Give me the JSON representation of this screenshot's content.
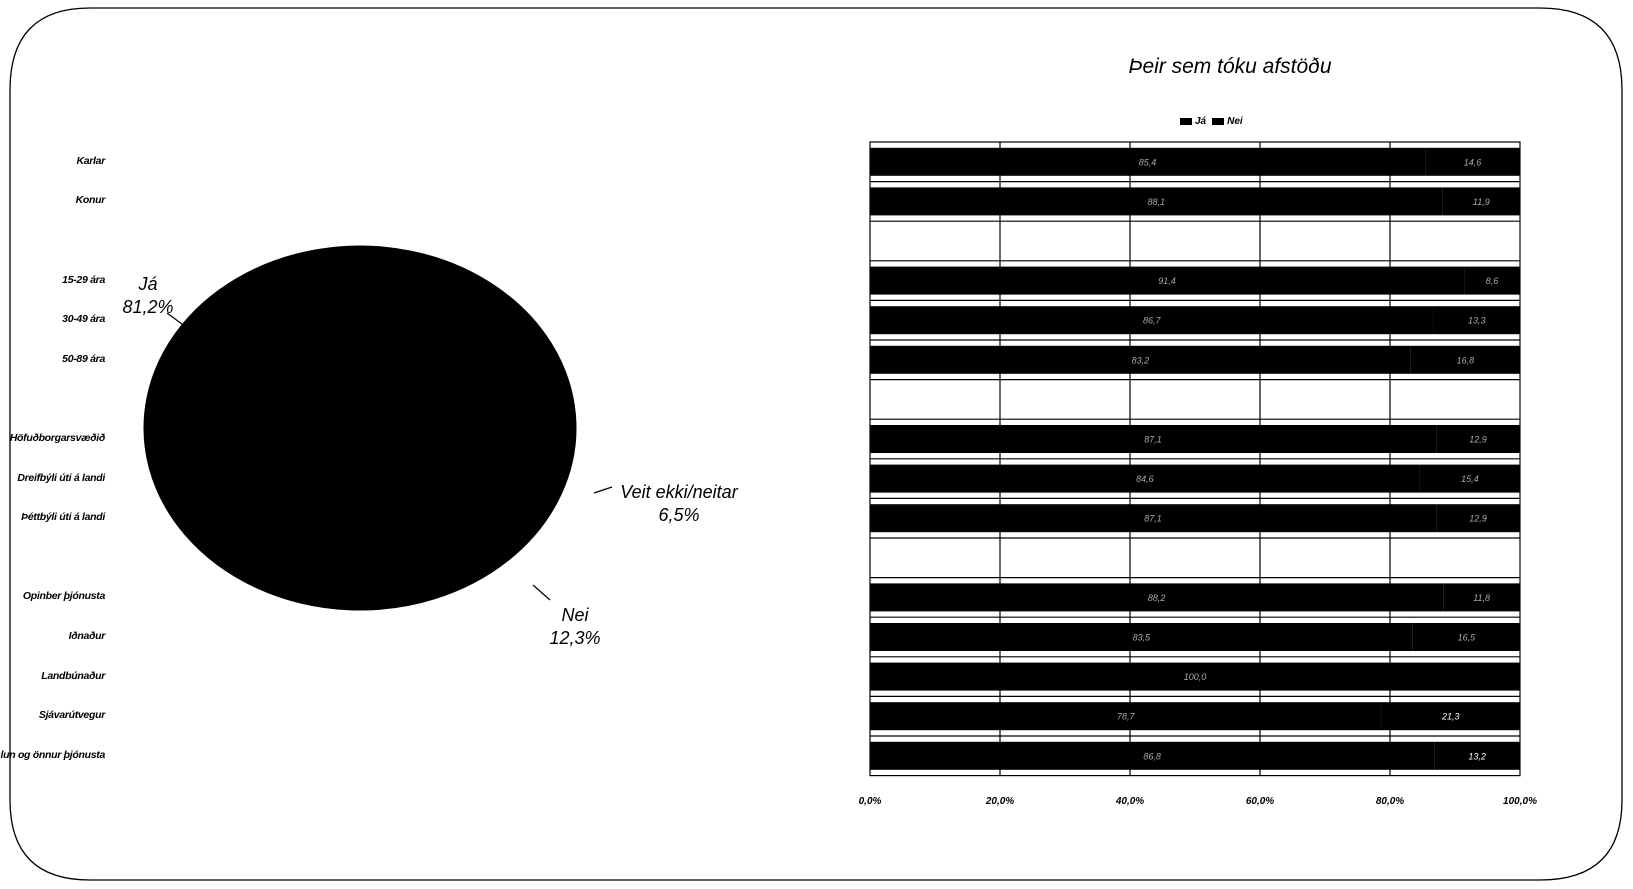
{
  "chart_data": [
    {
      "type": "pie",
      "slices": [
        {
          "label": "Já",
          "value_label": "81,2%",
          "value": 81.2
        },
        {
          "label": "Nei",
          "value_label": "12,3%",
          "value": 12.3
        },
        {
          "label": "Veit ekki/neitar",
          "value_label": "6,5%",
          "value": 6.5
        }
      ]
    },
    {
      "type": "bar",
      "orientation": "horizontal",
      "stacked": true,
      "title": "Þeir sem tóku afstöðu",
      "legend": [
        "Já",
        "Nei"
      ],
      "legend_position": "top-center",
      "categories": [
        "Karlar",
        "Konur",
        "",
        "15-29 ára",
        "30-49 ára",
        "50-89 ára",
        "",
        "Höfuðborgarsvæðið",
        "Dreifbýli úti á landi",
        "Þéttbýli úti á landi",
        "",
        "Opinber þjónusta",
        "Iðnaður",
        "Landbúnaður",
        "Sjávarútvegur",
        "Verslun og önnur þjónusta"
      ],
      "series": [
        {
          "name": "Já",
          "values": [
            85.4,
            88.1,
            null,
            91.4,
            86.7,
            83.2,
            null,
            87.1,
            84.6,
            87.1,
            null,
            88.2,
            83.5,
            100.0,
            78.7,
            86.8
          ]
        },
        {
          "name": "Nei",
          "values": [
            14.6,
            11.9,
            null,
            8.6,
            13.3,
            16.8,
            null,
            12.9,
            15.4,
            12.9,
            null,
            11.8,
            16.5,
            0.0,
            21.3,
            13.2
          ]
        }
      ],
      "data_labels": {
        "Já": [
          "85,4",
          "88,1",
          "",
          "91,4",
          "86,7",
          "83,2",
          "",
          "87,1",
          "84,6",
          "87,1",
          "",
          "88,2",
          "83,5",
          "100,0",
          "78,7",
          "86,8"
        ],
        "Nei": [
          "14,6",
          "11,9",
          "",
          "8,6",
          "13,3",
          "16,8",
          "",
          "12,9",
          "15,4",
          "12,9",
          "",
          "11,8",
          "16,5",
          "",
          "21,3",
          "13,2"
        ]
      },
      "x_ticks": [
        "0,0%",
        "20,0%",
        "40,0%",
        "60,0%",
        "80,0%",
        "100,0%"
      ],
      "xlim": [
        0,
        100
      ],
      "grid": true,
      "colors": {
        "bar": "#000000",
        "label": "#aaaaaa",
        "label_highlight": "#ffffff"
      }
    }
  ]
}
